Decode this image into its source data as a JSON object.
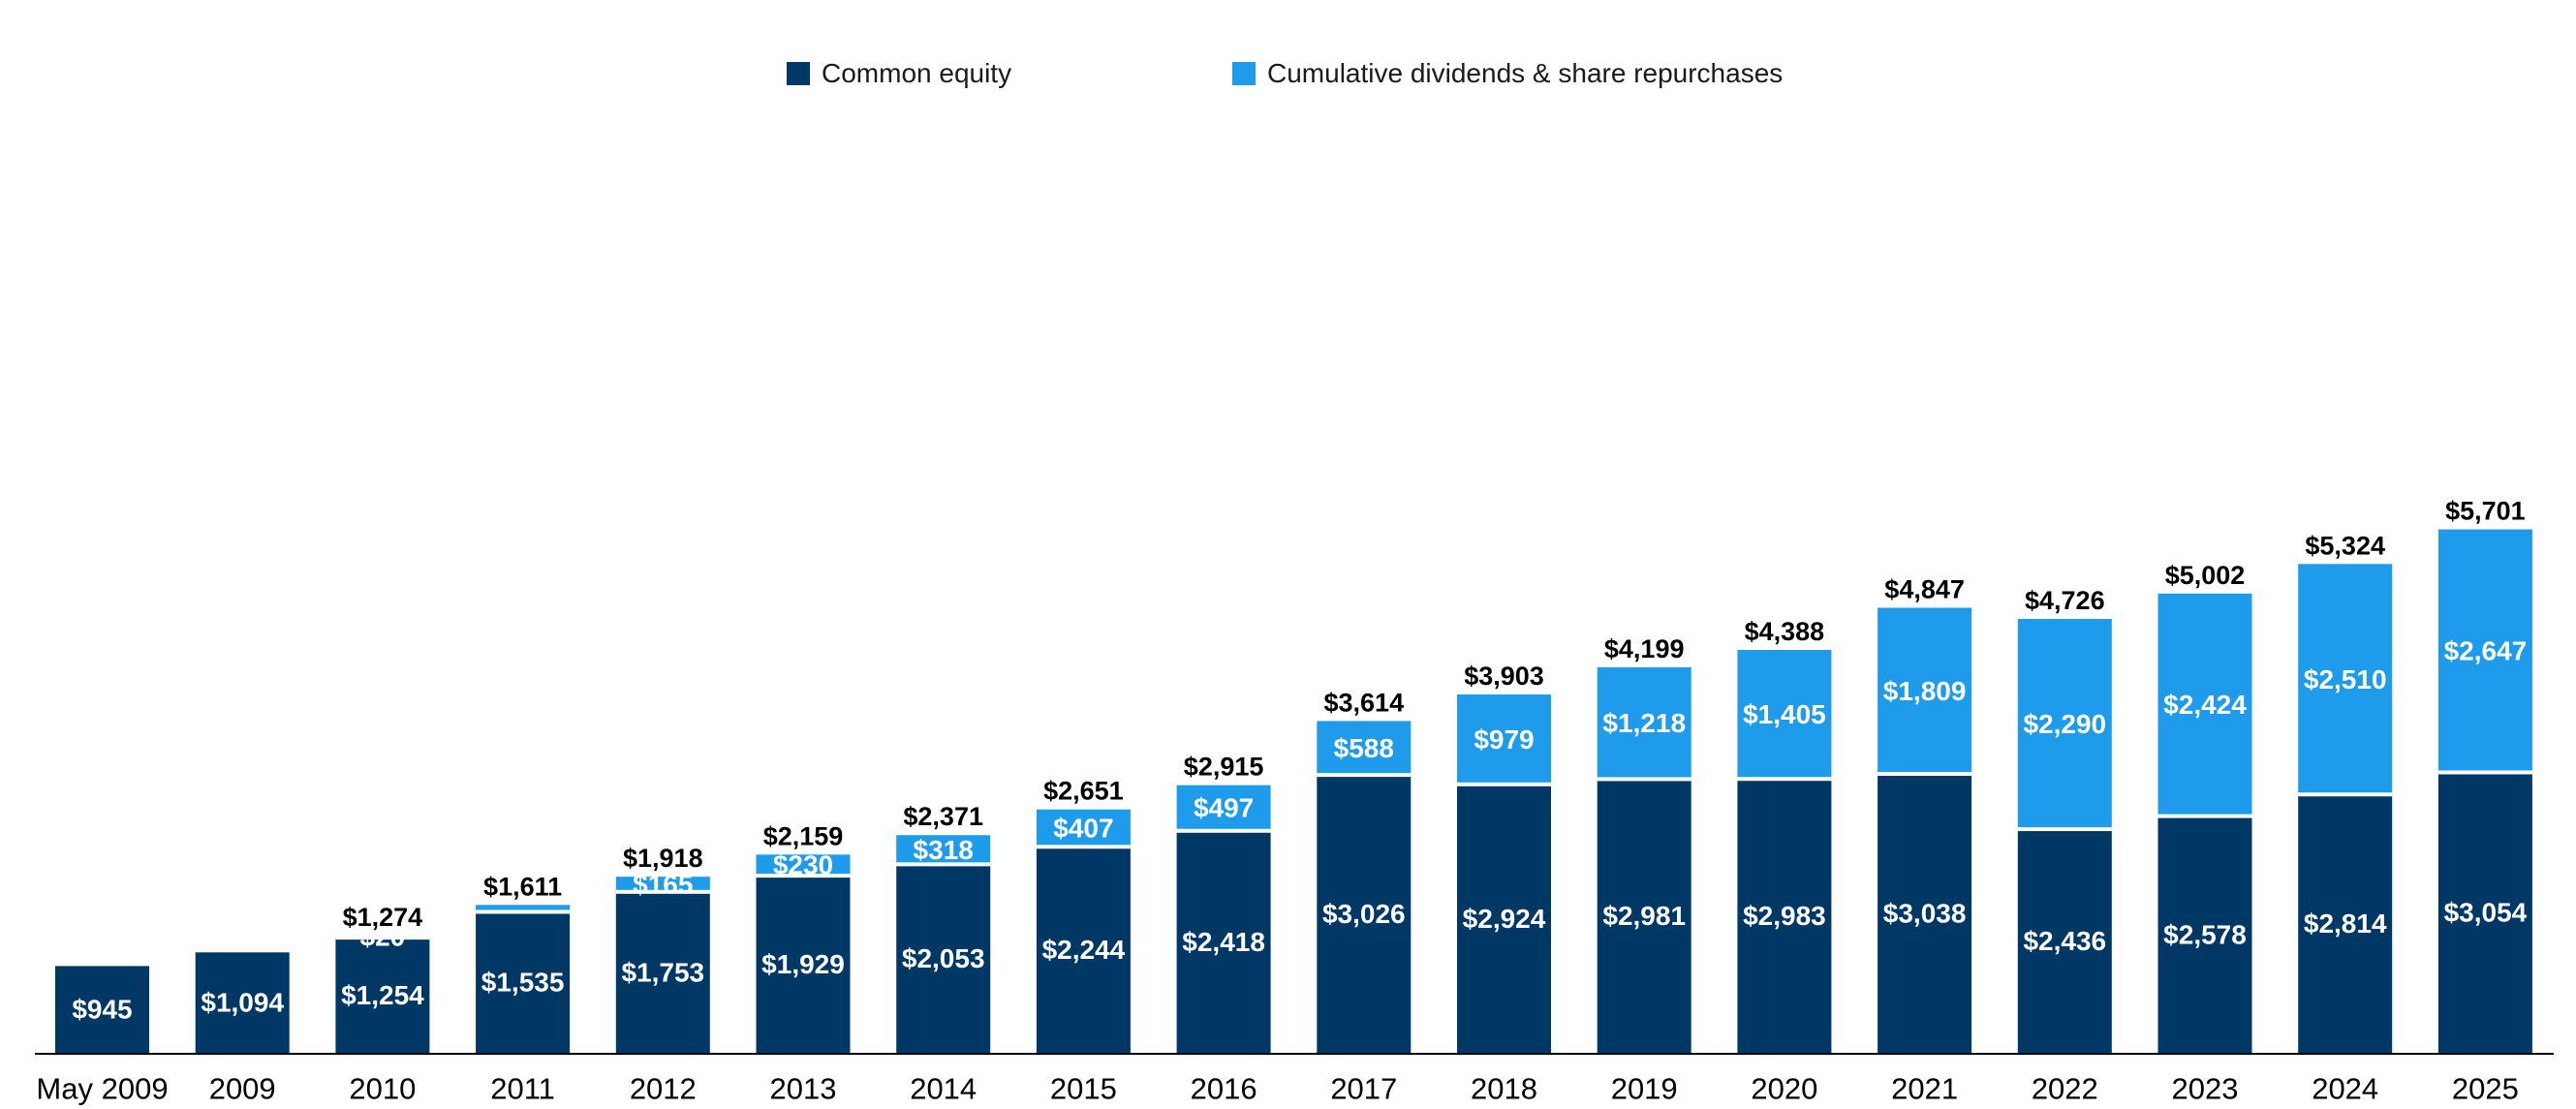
{
  "chart_data": {
    "type": "bar",
    "stacked": true,
    "title": "",
    "xlabel": "",
    "ylabel": "",
    "ylim": [
      0,
      5900
    ],
    "grid": false,
    "legend_placement": "top-center",
    "categories": [
      "May 2009",
      "2009",
      "2010",
      "2011",
      "2012",
      "2013",
      "2014",
      "2015",
      "2016",
      "2017",
      "2018",
      "2019",
      "2020",
      "2021",
      "2022",
      "2023",
      "2024",
      "2025"
    ],
    "series": [
      {
        "name": "Common equity",
        "color": "#003865",
        "values": [
          945,
          1094,
          1254,
          1535,
          1753,
          1929,
          2053,
          2244,
          2418,
          3026,
          2924,
          2981,
          2983,
          3038,
          2436,
          2578,
          2814,
          3054
        ],
        "labels": [
          "$945",
          "$1,094",
          "$1,254",
          "$1,535",
          "$1,753",
          "$1,929",
          "$2,053",
          "$2,244",
          "$2,418",
          "$3,026",
          "$2,924",
          "$2,981",
          "$2,983",
          "$3,038",
          "$2,436",
          "$2,578",
          "$2,814",
          "$3,054"
        ]
      },
      {
        "name": "Cumulative dividends & share repurchases",
        "color": "#1E9BEA",
        "values": [
          0,
          0,
          20,
          76,
          165,
          230,
          318,
          407,
          497,
          588,
          979,
          1218,
          1405,
          1809,
          2290,
          2424,
          2510,
          2647
        ],
        "labels": [
          "",
          "",
          "$20",
          "$76",
          "$165",
          "$230",
          "$318",
          "$407",
          "$497",
          "$588",
          "$979",
          "$1,218",
          "$1,405",
          "$1,809",
          "$2,290",
          "$2,424",
          "$2,510",
          "$2,647"
        ]
      }
    ],
    "totals": [
      "",
      "",
      "$1,274",
      "$1,611",
      "$1,918",
      "$2,159",
      "$2,371",
      "$2,651",
      "$2,915",
      "$3,614",
      "$3,903",
      "$4,199",
      "$4,388",
      "$4,847",
      "$4,726",
      "$5,002",
      "$5,324",
      "$5,701"
    ],
    "hidden_segment_labels": [
      3
    ]
  }
}
